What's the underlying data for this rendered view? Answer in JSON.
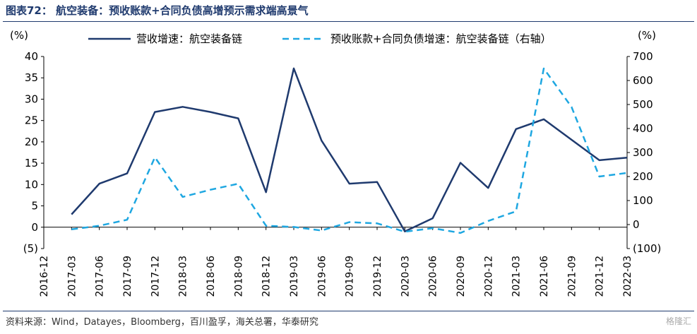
{
  "header": {
    "title": "图表72： 航空装备：预收账款+合同负债高增预示需求端高景气"
  },
  "footer": {
    "source": "资料来源：Wind，Datayes，Bloomberg，百川盈孚，海关总署，华泰研究",
    "watermark": "格隆汇"
  },
  "chart_data": {
    "type": "line",
    "categories": [
      "2016-12",
      "2017-03",
      "2017-06",
      "2017-09",
      "2017-12",
      "2018-03",
      "2018-06",
      "2018-09",
      "2018-12",
      "2019-03",
      "2019-06",
      "2019-09",
      "2019-12",
      "2020-03",
      "2020-06",
      "2020-09",
      "2020-12",
      "2021-03",
      "2021-06",
      "2021-09",
      "2021-12",
      "2022-03"
    ],
    "left_axis": {
      "unit": "(%)",
      "min": -5,
      "max": 40,
      "ticks": [
        -5,
        0,
        5,
        10,
        15,
        20,
        25,
        30,
        35,
        40
      ],
      "tick_labels": [
        "(5)",
        "0",
        "5",
        "10",
        "15",
        "20",
        "25",
        "30",
        "35",
        "40"
      ]
    },
    "right_axis": {
      "unit": "(%)",
      "min": -100,
      "max": 700,
      "ticks": [
        -100,
        0,
        100,
        200,
        300,
        400,
        500,
        600,
        700
      ],
      "tick_labels": [
        "(100)",
        "0",
        "100",
        "200",
        "300",
        "400",
        "500",
        "600",
        "700"
      ]
    },
    "legend_position": "top",
    "series": [
      {
        "name": "营收增速：航空装备链",
        "axis": "left",
        "style": "solid",
        "color": "#1f3a6e",
        "values": [
          null,
          3,
          10.2,
          12.6,
          27,
          28.2,
          27,
          25.5,
          8.2,
          37.2,
          20.3,
          10.2,
          10.6,
          -1,
          2.1,
          15.1,
          9.2,
          23,
          25.3,
          20.5,
          15.7,
          16.3
        ]
      },
      {
        "name": "预收账款+合同负债增速：航空装备链（右轴）",
        "axis": "right",
        "style": "dashed",
        "color": "#1ea7e1",
        "values": [
          null,
          -20,
          -5,
          20,
          280,
          115,
          145,
          170,
          -5,
          -10,
          -25,
          10,
          5,
          -30,
          -15,
          -35,
          15,
          55,
          650,
          490,
          200,
          215
        ]
      }
    ]
  }
}
